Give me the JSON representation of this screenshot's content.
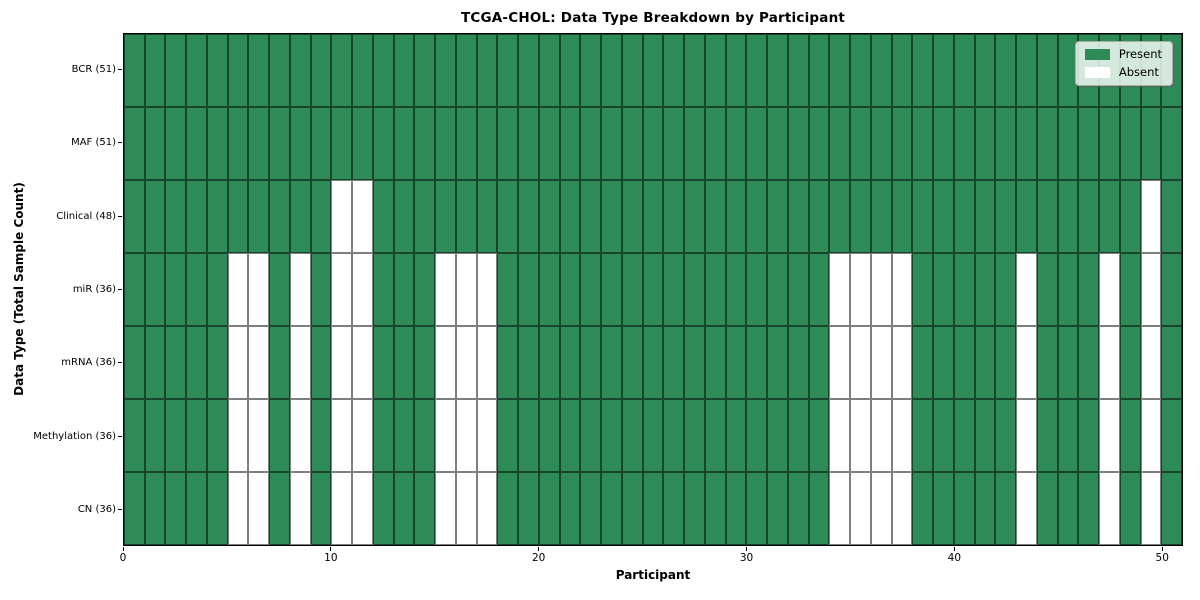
{
  "figure": {
    "title": "TCGA-CHOL: Data Type Breakdown by Participant",
    "xlabel": "Participant",
    "ylabel": "Data Type (Total Sample Count)"
  },
  "legend": {
    "items": [
      {
        "label": "Present",
        "color": "#2E8B57"
      },
      {
        "label": "Absent",
        "color": "#FFFFFF"
      }
    ],
    "position": "upper right"
  },
  "colors": {
    "present": "#2E8B57",
    "absent": "#FFFFFF",
    "cell_edge": "rgba(0,0,0,0.5)",
    "axis": "#000000",
    "background": "#FFFFFF"
  },
  "chart_data": {
    "type": "heatmap",
    "title": "TCGA-CHOL: Data Type Breakdown by Participant",
    "xlabel": "Participant",
    "ylabel": "Data Type (Total Sample Count)",
    "x_range": [
      0,
      51
    ],
    "n_participants": 51,
    "x_ticks": [
      0,
      10,
      20,
      30,
      40,
      50
    ],
    "grid": true,
    "legend_entries": [
      "Present",
      "Absent"
    ],
    "legend_position": "upper right",
    "rows": [
      {
        "label": "BCR (51)",
        "data_type": "BCR",
        "total_present": 51,
        "absent_participants": []
      },
      {
        "label": "MAF (51)",
        "data_type": "MAF",
        "total_present": 51,
        "absent_participants": []
      },
      {
        "label": "Clinical (48)",
        "data_type": "Clinical",
        "total_present": 48,
        "absent_participants": [
          10,
          11,
          49
        ]
      },
      {
        "label": "miR (36)",
        "data_type": "miR",
        "total_present": 36,
        "absent_participants": [
          5,
          6,
          8,
          10,
          11,
          15,
          16,
          17,
          34,
          35,
          36,
          37,
          43,
          47,
          49
        ]
      },
      {
        "label": "mRNA (36)",
        "data_type": "mRNA",
        "total_present": 36,
        "absent_participants": [
          5,
          6,
          8,
          10,
          11,
          15,
          16,
          17,
          34,
          35,
          36,
          37,
          43,
          47,
          49
        ]
      },
      {
        "label": "Methylation (36)",
        "data_type": "Methylation",
        "total_present": 36,
        "absent_participants": [
          5,
          6,
          8,
          10,
          11,
          15,
          16,
          17,
          34,
          35,
          36,
          37,
          43,
          47,
          49
        ]
      },
      {
        "label": "CN (36)",
        "data_type": "CN",
        "total_present": 36,
        "absent_participants": [
          5,
          6,
          8,
          10,
          11,
          15,
          16,
          17,
          34,
          35,
          36,
          37,
          43,
          47,
          49
        ]
      }
    ]
  }
}
